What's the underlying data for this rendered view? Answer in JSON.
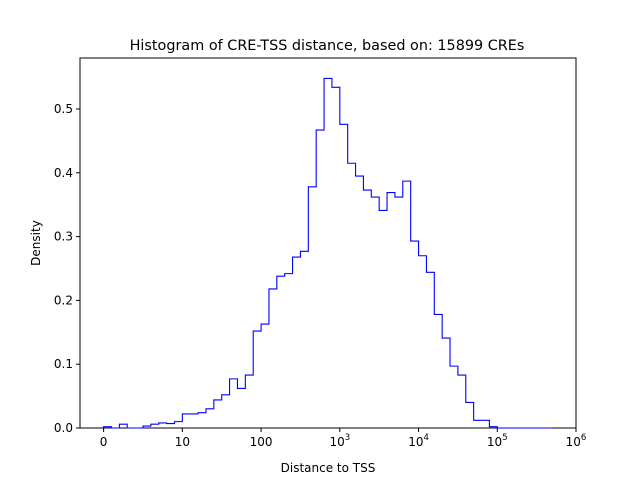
{
  "chart_data": {
    "type": "bar",
    "title": "Histogram of CRE-TSS distance, based on: 15899 CREs",
    "xlabel": "Distance to TSS",
    "ylabel": "Density",
    "x_scale": "log1p",
    "xlim": [
      -0.3,
      6
    ],
    "ylim": [
      0,
      0.58
    ],
    "x_ticks": [
      {
        "value": 0,
        "label": "0"
      },
      {
        "value": 1,
        "label": "10"
      },
      {
        "value": 2,
        "label": "100"
      },
      {
        "value": 3,
        "label": "10",
        "sup": "3"
      },
      {
        "value": 4,
        "label": "10",
        "sup": "4"
      },
      {
        "value": 5,
        "label": "10",
        "sup": "5"
      },
      {
        "value": 6,
        "label": "10",
        "sup": "6"
      }
    ],
    "y_ticks": [
      {
        "value": 0.0,
        "label": "0.0"
      },
      {
        "value": 0.1,
        "label": "0.1"
      },
      {
        "value": 0.2,
        "label": "0.2"
      },
      {
        "value": 0.3,
        "label": "0.3"
      },
      {
        "value": 0.4,
        "label": "0.4"
      },
      {
        "value": 0.5,
        "label": "0.5"
      }
    ],
    "line_color": "#0000ff",
    "bin_edges": [
      0,
      0.1,
      0.2,
      0.3,
      0.4,
      0.5,
      0.6,
      0.7,
      0.8,
      0.9,
      1.0,
      1.1,
      1.2,
      1.3,
      1.4,
      1.5,
      1.6,
      1.7,
      1.8,
      1.9,
      2.0,
      2.1,
      2.2,
      2.3,
      2.4,
      2.5,
      2.6,
      2.7,
      2.8,
      2.9,
      3.0,
      3.1,
      3.2,
      3.3,
      3.4,
      3.5,
      3.6,
      3.7,
      3.8,
      3.9,
      4.0,
      4.1,
      4.2,
      4.3,
      4.4,
      4.5,
      4.6,
      4.7,
      4.8,
      4.9,
      5.0,
      5.1,
      5.2,
      5.3,
      5.4,
      5.5,
      5.6,
      5.7
    ],
    "values": [
      0.002,
      0.0,
      0.006,
      0.0,
      0.0,
      0.003,
      0.006,
      0.008,
      0.007,
      0.01,
      0.022,
      0.022,
      0.024,
      0.03,
      0.044,
      0.052,
      0.077,
      0.062,
      0.083,
      0.152,
      0.163,
      0.218,
      0.238,
      0.242,
      0.268,
      0.277,
      0.378,
      0.467,
      0.548,
      0.534,
      0.476,
      0.415,
      0.395,
      0.373,
      0.362,
      0.341,
      0.369,
      0.362,
      0.387,
      0.293,
      0.27,
      0.244,
      0.178,
      0.141,
      0.097,
      0.083,
      0.04,
      0.012,
      0.012,
      0.002,
      0.0,
      0.0,
      0.0,
      0.0,
      0.0,
      0.0,
      0.0
    ]
  }
}
